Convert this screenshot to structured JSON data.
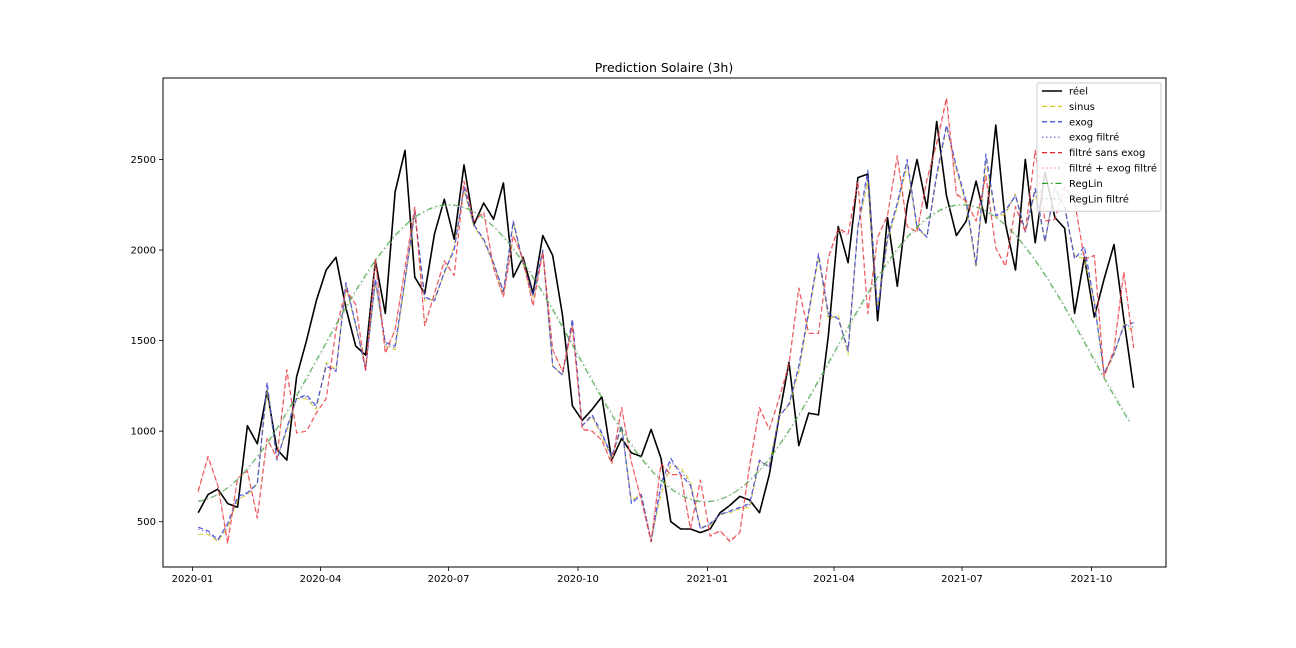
{
  "chart_data": {
    "type": "line",
    "title": "Prediction Solaire (3h)",
    "xlabel": "",
    "ylabel": "",
    "x_range": [
      "2019-12-11",
      "2021-11-23"
    ],
    "ylim": [
      250,
      2950
    ],
    "grid": false,
    "legend_position": "top-right",
    "x_ticks": [
      {
        "date": "2020-01-01",
        "label": "2020-01"
      },
      {
        "date": "2020-04-01",
        "label": "2020-04"
      },
      {
        "date": "2020-07-01",
        "label": "2020-07"
      },
      {
        "date": "2020-10-01",
        "label": "2020-10"
      },
      {
        "date": "2021-01-01",
        "label": "2021-01"
      },
      {
        "date": "2021-04-01",
        "label": "2021-04"
      },
      {
        "date": "2021-07-01",
        "label": "2021-07"
      },
      {
        "date": "2021-10-01",
        "label": "2021-10"
      }
    ],
    "y_ticks": [
      500,
      1000,
      1500,
      2000,
      2500
    ],
    "x": [
      "2020-01-05",
      "2020-01-12",
      "2020-01-19",
      "2020-01-26",
      "2020-02-02",
      "2020-02-09",
      "2020-02-16",
      "2020-02-23",
      "2020-03-01",
      "2020-03-08",
      "2020-03-15",
      "2020-03-22",
      "2020-03-29",
      "2020-04-05",
      "2020-04-12",
      "2020-04-19",
      "2020-04-26",
      "2020-05-03",
      "2020-05-10",
      "2020-05-17",
      "2020-05-24",
      "2020-05-31",
      "2020-06-07",
      "2020-06-14",
      "2020-06-21",
      "2020-06-28",
      "2020-07-05",
      "2020-07-12",
      "2020-07-19",
      "2020-07-26",
      "2020-08-02",
      "2020-08-09",
      "2020-08-16",
      "2020-08-23",
      "2020-08-30",
      "2020-09-06",
      "2020-09-13",
      "2020-09-20",
      "2020-09-27",
      "2020-10-04",
      "2020-10-11",
      "2020-10-18",
      "2020-10-25",
      "2020-11-01",
      "2020-11-08",
      "2020-11-15",
      "2020-11-22",
      "2020-11-29",
      "2020-12-06",
      "2020-12-13",
      "2020-12-20",
      "2020-12-27",
      "2021-01-03",
      "2021-01-10",
      "2021-01-17",
      "2021-01-24",
      "2021-01-31",
      "2021-02-07",
      "2021-02-14",
      "2021-02-21",
      "2021-02-28",
      "2021-03-07",
      "2021-03-14",
      "2021-03-21",
      "2021-03-28",
      "2021-04-04",
      "2021-04-11",
      "2021-04-18",
      "2021-04-25",
      "2021-05-02",
      "2021-05-09",
      "2021-05-16",
      "2021-05-23",
      "2021-05-30",
      "2021-06-06",
      "2021-06-13",
      "2021-06-20",
      "2021-06-27",
      "2021-07-04",
      "2021-07-11",
      "2021-07-18",
      "2021-07-25",
      "2021-08-01",
      "2021-08-08",
      "2021-08-15",
      "2021-08-22",
      "2021-08-29",
      "2021-09-05",
      "2021-09-12",
      "2021-09-19",
      "2021-09-26",
      "2021-10-03",
      "2021-10-10",
      "2021-10-17",
      "2021-10-24",
      "2021-10-31"
    ],
    "series": [
      {
        "name": "réel",
        "color": "#000000",
        "dash": "solid",
        "width": 1.6,
        "values": [
          550,
          650,
          680,
          600,
          580,
          1030,
          930,
          1220,
          900,
          840,
          1300,
          1500,
          1720,
          1890,
          1960,
          1680,
          1470,
          1420,
          1940,
          1650,
          2320,
          2550,
          1850,
          1760,
          2090,
          2280,
          2060,
          2470,
          2140,
          2260,
          2170,
          2370,
          1850,
          1960,
          1760,
          2080,
          1970,
          1640,
          1140,
          1060,
          1120,
          1190,
          840,
          960,
          880,
          860,
          1010,
          850,
          500,
          460,
          460,
          440,
          460,
          550,
          590,
          640,
          620,
          550,
          760,
          1080,
          1380,
          920,
          1100,
          1090,
          1530,
          2130,
          1930,
          2400,
          2420,
          1610,
          2180,
          1800,
          2250,
          2500,
          2230,
          2710,
          2300,
          2080,
          2160,
          2380,
          2150,
          2690,
          2140,
          1890,
          2500,
          2040,
          2430,
          2180,
          2120,
          1650,
          1960,
          1630,
          1840,
          2030,
          1620,
          1240
        ]
      },
      {
        "name": "sinus",
        "color": "#d4c820",
        "dash": "dash",
        "width": 1.2,
        "values": [
          430,
          430,
          390,
          470,
          620,
          650,
          710,
          1230,
          850,
          1000,
          1180,
          1180,
          1120,
          1380,
          1340,
          1800,
          1580,
          1360,
          1820,
          1470,
          1450,
          1820,
          2200,
          1720,
          1730,
          1870,
          2020,
          2330,
          2130,
          2050,
          1920,
          1760,
          2150,
          1920,
          1740,
          1990,
          1360,
          1310,
          1590,
          1030,
          1080,
          970,
          850,
          1020,
          620,
          650,
          400,
          650,
          810,
          800,
          720,
          470,
          480,
          540,
          550,
          570,
          580,
          830,
          810,
          1090,
          1140,
          1330,
          1640,
          1960,
          1620,
          1640,
          1420,
          2120,
          2380,
          1680,
          2050,
          2240,
          2470,
          2110,
          2080,
          2400,
          2680,
          2440,
          2250,
          1900,
          2490,
          2180,
          2200,
          2310,
          2100,
          2320,
          2040,
          2360,
          2230,
          1970,
          1950,
          1720,
          1310,
          1420,
          1590,
          1550
        ]
      },
      {
        "name": "exog",
        "color": "#2030d0",
        "dash": "dash",
        "width": 1.2,
        "values": [
          470,
          450,
          400,
          490,
          640,
          660,
          710,
          1270,
          840,
          1020,
          1180,
          1200,
          1140,
          1360,
          1330,
          1820,
          1590,
          1340,
          1840,
          1490,
          1470,
          1840,
          2210,
          1740,
          1720,
          1880,
          2000,
          2350,
          2140,
          2060,
          1930,
          1770,
          2160,
          1930,
          1750,
          2000,
          1360,
          1310,
          1620,
          1030,
          1090,
          990,
          860,
          1030,
          600,
          650,
          390,
          710,
          850,
          760,
          700,
          460,
          490,
          540,
          560,
          580,
          600,
          840,
          800,
          1080,
          1150,
          1360,
          1660,
          1980,
          1650,
          1620,
          1450,
          2130,
          2440,
          1660,
          2070,
          2260,
          2500,
          2130,
          2070,
          2420,
          2690,
          2460,
          2270,
          1920,
          2530,
          2190,
          2220,
          2300,
          2100,
          2340,
          2050,
          2340,
          2240,
          1950,
          2020,
          1710,
          1320,
          1430,
          1580,
          1600
        ]
      },
      {
        "name": "exog filtré",
        "color": "#6060d8",
        "dash": "dot",
        "width": 1.1,
        "values": [
          460,
          440,
          395,
          480,
          630,
          655,
          710,
          1250,
          845,
          1010,
          1180,
          1190,
          1130,
          1370,
          1335,
          1810,
          1585,
          1350,
          1830,
          1480,
          1460,
          1830,
          2205,
          1730,
          1725,
          1875,
          2010,
          2340,
          2135,
          2055,
          1925,
          1765,
          2155,
          1925,
          1745,
          1995,
          1360,
          1310,
          1605,
          1030,
          1085,
          980,
          855,
          1025,
          610,
          650,
          395,
          680,
          830,
          780,
          710,
          465,
          485,
          540,
          555,
          575,
          590,
          835,
          805,
          1085,
          1145,
          1345,
          1650,
          1970,
          1635,
          1630,
          1435,
          2125,
          2410,
          1670,
          2060,
          2250,
          2485,
          2120,
          2075,
          2410,
          2685,
          2450,
          2260,
          1910,
          2510,
          2185,
          2210,
          2305,
          2100,
          2330,
          2045,
          2350,
          2235,
          1960,
          1985,
          1715,
          1315,
          1425,
          1585,
          1575
        ]
      },
      {
        "name": "filtré sans exog",
        "color": "#e82020",
        "dash": "dash",
        "width": 1.2,
        "values": [
          670,
          860,
          700,
          380,
          740,
          780,
          520,
          960,
          850,
          1340,
          990,
          1000,
          1100,
          1180,
          1560,
          1780,
          1700,
          1330,
          1950,
          1430,
          1560,
          1900,
          2240,
          1580,
          1760,
          1940,
          1860,
          2380,
          2160,
          2210,
          1900,
          1740,
          2080,
          1950,
          1690,
          1990,
          1450,
          1330,
          1580,
          1010,
          1000,
          950,
          820,
          1130,
          830,
          620,
          390,
          820,
          760,
          760,
          460,
          730,
          420,
          450,
          390,
          440,
          810,
          1130,
          1010,
          1180,
          1370,
          1790,
          1540,
          1540,
          1960,
          2120,
          2090,
          2380,
          1650,
          2070,
          2190,
          2520,
          2130,
          2100,
          2390,
          2590,
          2840,
          2310,
          2270,
          2160,
          2410,
          2010,
          1910,
          2240,
          2100,
          2550,
          2160,
          2170,
          2350,
          2270,
          1950,
          1970,
          1300,
          1450,
          1880,
          1460
        ]
      },
      {
        "name": "filtré + exog filtré",
        "color": "#f08090",
        "dash": "dot",
        "width": 1.1,
        "values": [
          660,
          850,
          700,
          400,
          740,
          780,
          530,
          960,
          850,
          1320,
          990,
          1000,
          1100,
          1180,
          1550,
          1770,
          1700,
          1340,
          1940,
          1440,
          1560,
          1900,
          2230,
          1590,
          1760,
          1930,
          1860,
          2370,
          2160,
          2200,
          1900,
          1740,
          2080,
          1950,
          1700,
          1980,
          1450,
          1330,
          1580,
          1020,
          1000,
          950,
          820,
          1120,
          830,
          620,
          400,
          810,
          760,
          760,
          470,
          720,
          430,
          450,
          400,
          440,
          800,
          1120,
          1010,
          1180,
          1360,
          1780,
          1540,
          1540,
          1950,
          2110,
          2080,
          2370,
          1660,
          2070,
          2190,
          2510,
          2130,
          2100,
          2380,
          2580,
          2820,
          2300,
          2270,
          2160,
          2400,
          2010,
          1920,
          2240,
          2100,
          2540,
          2160,
          2170,
          2340,
          2270,
          1950,
          1970,
          1310,
          1450,
          1870,
          1470
        ]
      },
      {
        "name": "RegLin",
        "color": "#30a030",
        "dash": "dashdot",
        "width": 1.2,
        "fn": "sine",
        "params": {
          "mean": 1430,
          "amp": 820,
          "peak": "2020-07-01",
          "period_days": 365
        }
      },
      {
        "name": "RegLin filtré",
        "color": "#c0c0c0",
        "dash": "dot",
        "width": 1.0,
        "fn": "sine",
        "params": {
          "mean": 1430,
          "amp": 815,
          "peak": "2020-07-02",
          "period_days": 365
        }
      }
    ]
  }
}
